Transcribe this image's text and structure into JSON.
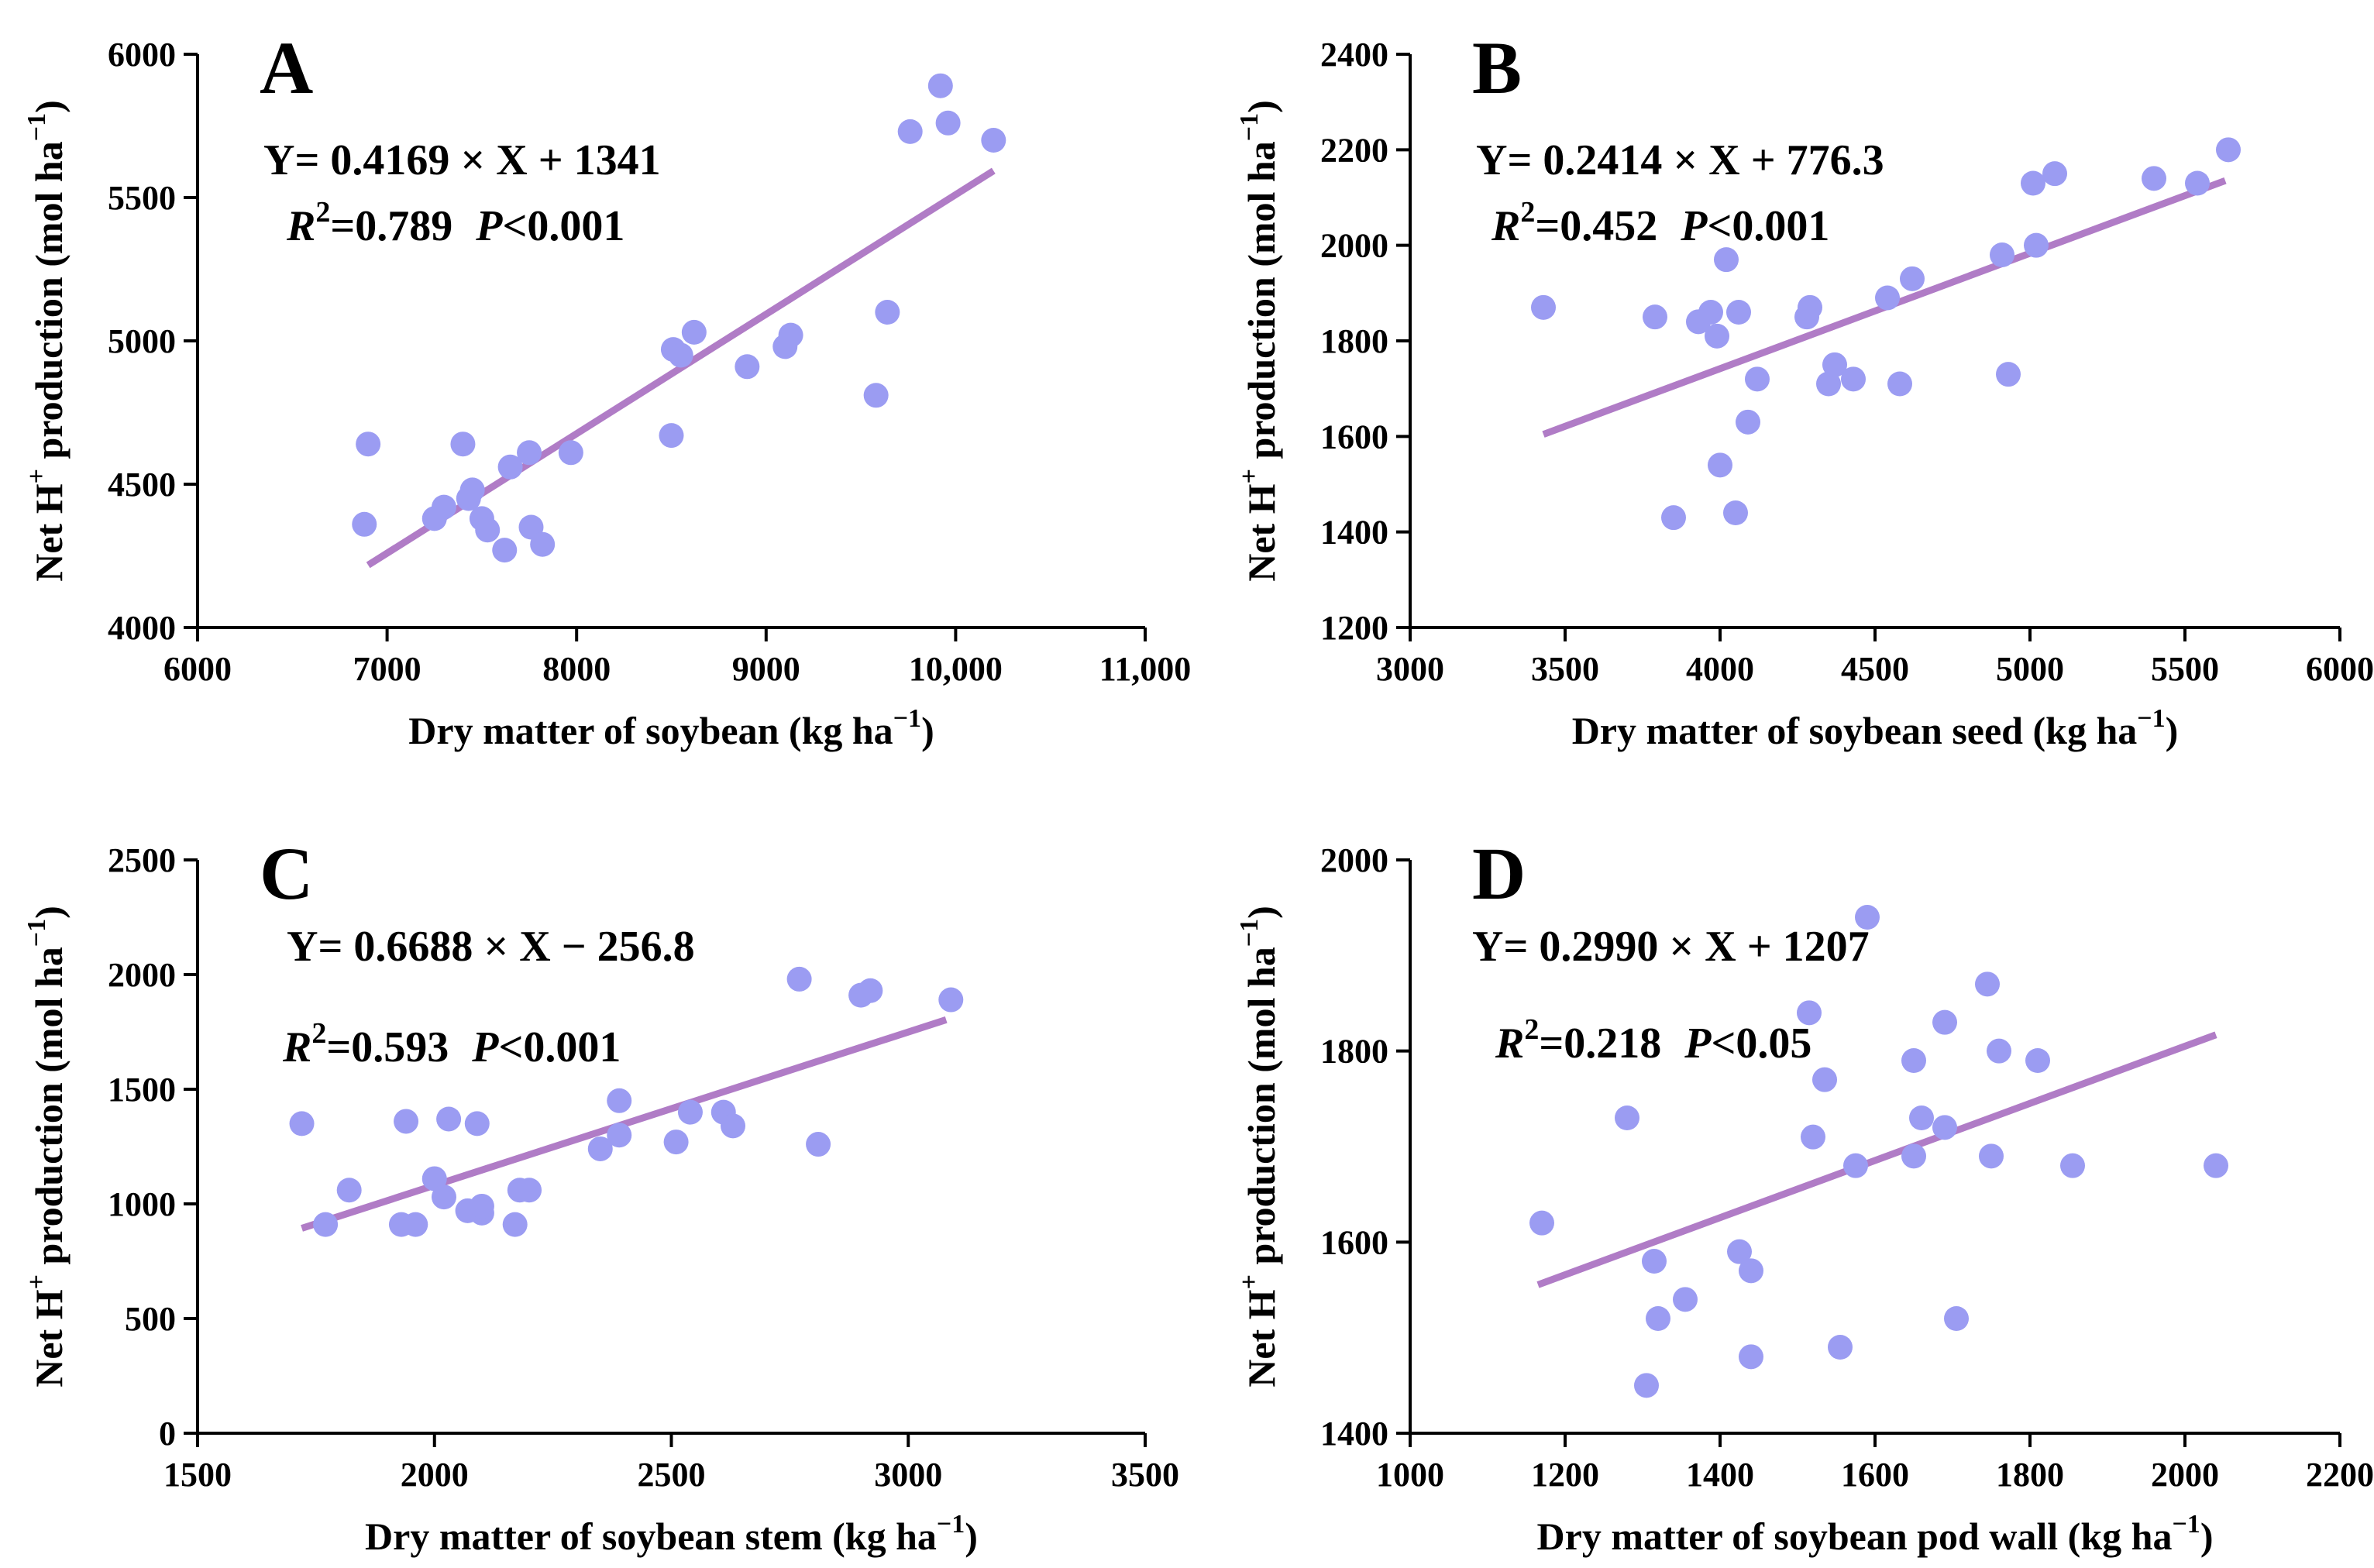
{
  "colors": {
    "point": "#9b9cf2",
    "fit_line": "#b07cc6",
    "axis": "#000000"
  },
  "chart_data": [
    {
      "type": "scatter",
      "panel": "A",
      "xlabel": "Dry matter of soybean (kg ha",
      "ylabel": "Net H",
      "ylabel_sup": "+",
      "ylabel_rest": " production (mol ha",
      "unit_sup": "−1",
      "unit_close": ")",
      "xlim": [
        6000,
        11000
      ],
      "ylim": [
        4000,
        6000
      ],
      "xticks": [
        6000,
        7000,
        8000,
        9000,
        10000,
        11000
      ],
      "xtick_labels": [
        "6000",
        "7000",
        "8000",
        "9000",
        "10,000",
        "11,000"
      ],
      "yticks": [
        4000,
        4500,
        5000,
        5500,
        6000
      ],
      "ytick_labels": [
        "4000",
        "4500",
        "5000",
        "5500",
        "6000"
      ],
      "equation": "Y= 0.4169 × X + 1341",
      "r2_label": "R",
      "r2_sup": "2",
      "r2_value": "=0.789",
      "p_label": "P",
      "p_value": "<0.001",
      "fit": {
        "slope": 0.4169,
        "intercept": 1341,
        "x_range": [
          6900,
          10200
        ]
      },
      "x": [
        6880,
        6900,
        7250,
        7300,
        7400,
        7430,
        7450,
        7500,
        7530,
        7620,
        7650,
        7750,
        7760,
        7820,
        7970,
        8500,
        8510,
        8550,
        8620,
        8900,
        9100,
        9130,
        9580,
        9640,
        9760,
        9920,
        9960,
        10200
      ],
      "y": [
        4360,
        4640,
        4380,
        4420,
        4640,
        4450,
        4480,
        4380,
        4340,
        4270,
        4560,
        4610,
        4350,
        4290,
        4610,
        4670,
        4970,
        4950,
        5030,
        4910,
        4980,
        5020,
        4810,
        5100,
        5730,
        5890,
        5760,
        5700
      ]
    },
    {
      "type": "scatter",
      "panel": "B",
      "xlabel": "Dry matter of soybean seed (kg ha",
      "ylabel": "Net H",
      "ylabel_sup": "+",
      "ylabel_rest": " production (mol ha",
      "unit_sup": "−1",
      "unit_close": ")",
      "xlim": [
        3000,
        6000
      ],
      "ylim": [
        1200,
        2400
      ],
      "xticks": [
        3000,
        3500,
        4000,
        4500,
        5000,
        5500,
        6000
      ],
      "xtick_labels": [
        "3000",
        "3500",
        "4000",
        "4500",
        "5000",
        "5500",
        "6000"
      ],
      "yticks": [
        1200,
        1400,
        1600,
        1800,
        2000,
        2200,
        2400
      ],
      "ytick_labels": [
        "1200",
        "1400",
        "1600",
        "1800",
        "2000",
        "2200",
        "2400"
      ],
      "equation": "Y= 0.2414 × X + 776.3",
      "r2_label": "R",
      "r2_sup": "2",
      "r2_value": "=0.452",
      "p_label": "P",
      "p_value": "<0.001",
      "fit": {
        "slope": 0.2414,
        "intercept": 776.3,
        "x_range": [
          3430,
          5630
        ]
      },
      "x": [
        3430,
        3790,
        3850,
        3930,
        3970,
        3990,
        4000,
        4020,
        4050,
        4060,
        4090,
        4120,
        4280,
        4290,
        4350,
        4370,
        4430,
        4540,
        4580,
        4620,
        4910,
        4930,
        5010,
        5020,
        5080,
        5400,
        5540,
        5640
      ],
      "y": [
        1870,
        1850,
        1430,
        1840,
        1860,
        1810,
        1540,
        1970,
        1440,
        1860,
        1630,
        1720,
        1850,
        1870,
        1710,
        1750,
        1720,
        1890,
        1710,
        1930,
        1980,
        1730,
        2130,
        2000,
        2150,
        2140,
        2130,
        2200
      ]
    },
    {
      "type": "scatter",
      "panel": "C",
      "xlabel": "Dry matter of soybean stem (kg ha",
      "ylabel": "Net H",
      "ylabel_sup": "+",
      "ylabel_rest": " production (mol ha",
      "unit_sup": "−1",
      "unit_close": ")",
      "xlim": [
        1500,
        3500
      ],
      "ylim": [
        0,
        2500
      ],
      "xticks": [
        1500,
        2000,
        2500,
        3000,
        3500
      ],
      "xtick_labels": [
        "1500",
        "2000",
        "2500",
        "3000",
        "3500"
      ],
      "yticks": [
        0,
        500,
        1000,
        1500,
        2000,
        2500
      ],
      "ytick_labels": [
        "0",
        "500",
        "1000",
        "1500",
        "2000",
        "2500"
      ],
      "equation": "Y= 0.6688 × X − 256.8",
      "r2_label": "R",
      "r2_sup": "2",
      "r2_value": "=0.593",
      "p_label": "P",
      "p_value": "<0.001",
      "fit": {
        "slope": 0.6688,
        "intercept": -256.8,
        "x_range": [
          1720,
          3080
        ]
      },
      "x": [
        1720,
        1770,
        1820,
        1930,
        1940,
        1960,
        2000,
        2020,
        2030,
        2070,
        2090,
        2100,
        2100,
        2170,
        2180,
        2200,
        2350,
        2390,
        2390,
        2510,
        2540,
        2610,
        2630,
        2770,
        2810,
        2900,
        2920,
        3090
      ],
      "y": [
        1350,
        910,
        1060,
        910,
        1360,
        910,
        1110,
        1030,
        1370,
        970,
        1350,
        960,
        990,
        910,
        1060,
        1060,
        1240,
        1450,
        1300,
        1270,
        1400,
        1400,
        1340,
        1980,
        1260,
        1910,
        1930,
        1890
      ]
    },
    {
      "type": "scatter",
      "panel": "D",
      "xlabel": "Dry matter of soybean pod wall (kg ha",
      "ylabel": "Net H",
      "ylabel_sup": "+",
      "ylabel_rest": " production (mol ha",
      "unit_sup": "−1",
      "unit_close": ")",
      "xlim": [
        1000,
        2200
      ],
      "ylim": [
        1400,
        2000
      ],
      "xticks": [
        1000,
        1200,
        1400,
        1600,
        1800,
        2000,
        2200
      ],
      "xtick_labels": [
        "1000",
        "1200",
        "1400",
        "1600",
        "1800",
        "2000",
        "2200"
      ],
      "yticks": [
        1400,
        1600,
        1800,
        2000
      ],
      "ytick_labels": [
        "1400",
        "1600",
        "1800",
        "2000"
      ],
      "equation": "Y= 0.2990 × X + 1207",
      "r2_label": "R",
      "r2_sup": "2",
      "r2_value": "=0.218",
      "p_label": "P",
      "p_value": "<0.05",
      "fit": {
        "slope": 0.299,
        "intercept": 1207,
        "x_range": [
          1165,
          2040
        ]
      },
      "x": [
        1170,
        1280,
        1305,
        1315,
        1320,
        1355,
        1425,
        1440,
        1440,
        1515,
        1520,
        1535,
        1555,
        1575,
        1590,
        1650,
        1650,
        1660,
        1690,
        1690,
        1705,
        1745,
        1750,
        1760,
        1810,
        1855,
        2040
      ],
      "y": [
        1620,
        1730,
        1450,
        1580,
        1520,
        1540,
        1590,
        1570,
        1480,
        1840,
        1710,
        1770,
        1490,
        1680,
        1940,
        1690,
        1790,
        1730,
        1830,
        1720,
        1520,
        1870,
        1690,
        1800,
        1790,
        1680,
        1680
      ]
    }
  ]
}
